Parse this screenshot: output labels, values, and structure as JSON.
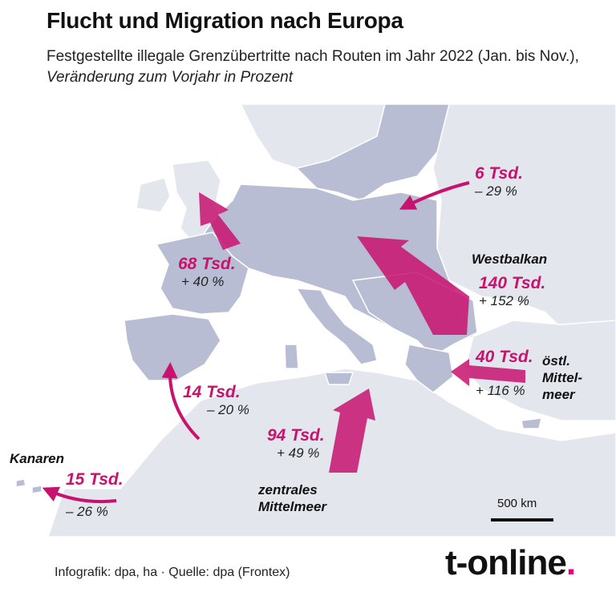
{
  "header": {
    "title": "Flucht und Migration nach Europa",
    "subtitle_plain": "Festgestellte illegale Grenzübertritte nach Routen im Jahr 2022 (Jan. bis Nov.),",
    "subtitle_italic": "Veränderung zum Vorjahr in Prozent"
  },
  "routes": [
    {
      "name": "",
      "value": "68 Tsd.",
      "change": "+ 40 %"
    },
    {
      "name": "",
      "value": "6 Tsd.",
      "change": "– 29 %"
    },
    {
      "name": "Westbalkan",
      "value": "140 Tsd.",
      "change": "+ 152 %"
    },
    {
      "name": "östl. Mittel- meer",
      "value": "40 Tsd.",
      "change": "+ 116 %"
    },
    {
      "name": "",
      "value": "14 Tsd.",
      "change": "– 20 %"
    },
    {
      "name": "zentrales Mittelmeer",
      "value": "94 Tsd.",
      "change": "+ 49 %"
    },
    {
      "name": "Kanaren",
      "value": "15 Tsd.",
      "change": "– 26 %"
    }
  ],
  "route_labels": {
    "westbalkan": "Westbalkan",
    "ostl_1": "östl.",
    "ostl_2": "Mittel-",
    "ostl_3": "meer",
    "zentral_1": "zentrales",
    "zentral_2": "Mittelmeer",
    "kanaren": "Kanaren"
  },
  "scale": {
    "label": "500 km"
  },
  "footer": {
    "source": "Infografik: dpa, ha  ·  Quelle: dpa (Frontex)",
    "brand": "t-online",
    "brand_dot": "."
  },
  "colors": {
    "eu_land": "#b9bdd4",
    "other_land": "#e4e6ee",
    "sea": "#ffffff",
    "accent": "#c8126e",
    "border": "#ffffff"
  }
}
